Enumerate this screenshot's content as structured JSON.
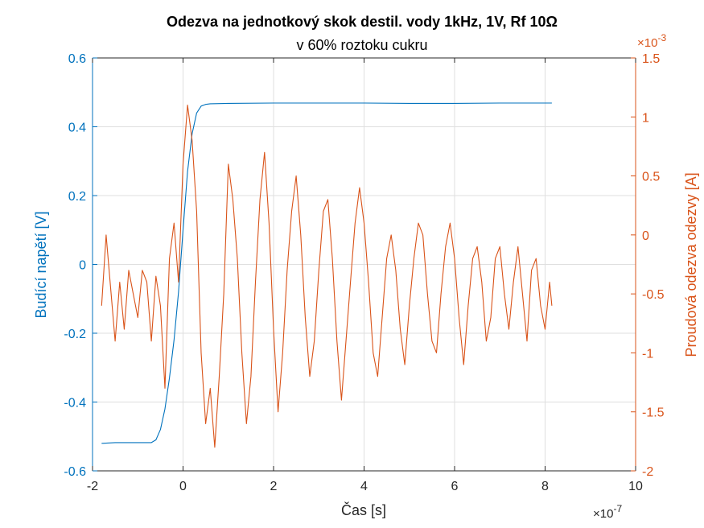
{
  "chart_data": {
    "type": "line",
    "title": "Odezva na jednotkový skok destil. vody 1kHz, 1V, Rf 10Ω",
    "subtitle": "v 60% roztoku cukru",
    "xlabel": "Čas [s]",
    "ylabel_left": "Budící napětí [V]",
    "ylabel_right": "Proudová odezva odezvy [A]",
    "x_exponent_label": "×10",
    "x_exponent_power": "-7",
    "y2_exponent_label": "×10",
    "y2_exponent_power": "-3",
    "xlim": [
      -2e-07,
      1e-06
    ],
    "ylim_left": [
      -0.6,
      0.6
    ],
    "ylim_right": [
      -0.002,
      0.0015
    ],
    "xticks": [
      -2,
      0,
      2,
      4,
      6,
      8,
      10
    ],
    "xtick_labels": [
      "-2",
      "0",
      "2",
      "4",
      "6",
      "8",
      "10"
    ],
    "yticks_left": [
      -0.6,
      -0.4,
      -0.2,
      0,
      0.2,
      0.4,
      0.6
    ],
    "ytick_labels_left": [
      "-0.6",
      "-0.4",
      "-0.2",
      "0",
      "0.2",
      "0.4",
      "0.6"
    ],
    "yticks_right": [
      -2,
      -1.5,
      -1,
      -0.5,
      0,
      0.5,
      1,
      1.5
    ],
    "ytick_labels_right": [
      "-2",
      "-1.5",
      "-1",
      "-0.5",
      "0",
      "0.5",
      "1",
      "1.5"
    ],
    "grid": true,
    "colors": {
      "left": "#0072BD",
      "right": "#D95319",
      "axis": "#262626",
      "grid": "#dfdfdf"
    },
    "series": [
      {
        "axis": "left",
        "color": "#0072BD",
        "x_units": "1e-7 s",
        "x": [
          -1.8,
          -1.5,
          -1.0,
          -0.7,
          -0.6,
          -0.5,
          -0.4,
          -0.3,
          -0.2,
          -0.1,
          0.0,
          0.1,
          0.2,
          0.3,
          0.4,
          0.5,
          0.6,
          1.0,
          2.0,
          3.0,
          4.0,
          5.0,
          6.0,
          7.0,
          8.15
        ],
        "y": [
          -0.52,
          -0.518,
          -0.518,
          -0.518,
          -0.51,
          -0.48,
          -0.42,
          -0.33,
          -0.22,
          -0.08,
          0.1,
          0.27,
          0.38,
          0.44,
          0.46,
          0.465,
          0.467,
          0.468,
          0.469,
          0.469,
          0.469,
          0.468,
          0.468,
          0.469,
          0.469
        ]
      },
      {
        "axis": "right",
        "color": "#D95319",
        "x_units": "1e-7 s",
        "y_units": "1e-3 A",
        "x": [
          -1.8,
          -1.7,
          -1.6,
          -1.5,
          -1.4,
          -1.3,
          -1.2,
          -1.1,
          -1.0,
          -0.9,
          -0.8,
          -0.7,
          -0.6,
          -0.5,
          -0.4,
          -0.3,
          -0.2,
          -0.1,
          0.0,
          0.1,
          0.2,
          0.3,
          0.4,
          0.5,
          0.6,
          0.7,
          0.8,
          0.9,
          1.0,
          1.1,
          1.2,
          1.3,
          1.4,
          1.5,
          1.6,
          1.7,
          1.8,
          1.9,
          2.0,
          2.1,
          2.2,
          2.3,
          2.4,
          2.5,
          2.6,
          2.7,
          2.8,
          2.9,
          3.0,
          3.1,
          3.2,
          3.3,
          3.4,
          3.5,
          3.6,
          3.7,
          3.8,
          3.9,
          4.0,
          4.1,
          4.2,
          4.3,
          4.4,
          4.5,
          4.6,
          4.7,
          4.8,
          4.9,
          5.0,
          5.1,
          5.2,
          5.3,
          5.4,
          5.5,
          5.6,
          5.7,
          5.8,
          5.9,
          6.0,
          6.1,
          6.2,
          6.3,
          6.4,
          6.5,
          6.6,
          6.7,
          6.8,
          6.9,
          7.0,
          7.1,
          7.2,
          7.3,
          7.4,
          7.5,
          7.6,
          7.7,
          7.8,
          7.9,
          8.0,
          8.1,
          8.15
        ],
        "y": [
          -0.6,
          0.0,
          -0.45,
          -0.9,
          -0.4,
          -0.8,
          -0.3,
          -0.5,
          -0.7,
          -0.3,
          -0.4,
          -0.9,
          -0.35,
          -0.6,
          -1.3,
          -0.2,
          0.1,
          -0.4,
          0.6,
          1.1,
          0.8,
          0.2,
          -1.0,
          -1.6,
          -1.3,
          -1.8,
          -1.2,
          -0.5,
          0.6,
          0.3,
          -0.2,
          -1.0,
          -1.6,
          -1.2,
          -0.4,
          0.3,
          0.7,
          0.1,
          -0.8,
          -1.5,
          -1.0,
          -0.3,
          0.2,
          0.5,
          0.0,
          -0.7,
          -1.2,
          -0.9,
          -0.3,
          0.2,
          0.3,
          -0.2,
          -0.9,
          -1.4,
          -0.9,
          -0.4,
          0.1,
          0.4,
          0.1,
          -0.4,
          -1.0,
          -1.2,
          -0.7,
          -0.2,
          0.0,
          -0.3,
          -0.8,
          -1.1,
          -0.6,
          -0.2,
          0.1,
          0.0,
          -0.5,
          -0.9,
          -1.0,
          -0.5,
          -0.1,
          0.1,
          -0.2,
          -0.7,
          -1.1,
          -0.6,
          -0.2,
          -0.1,
          -0.4,
          -0.9,
          -0.7,
          -0.2,
          -0.1,
          -0.5,
          -0.8,
          -0.4,
          -0.1,
          -0.5,
          -0.9,
          -0.3,
          -0.2,
          -0.6,
          -0.8,
          -0.4,
          -0.6
        ]
      }
    ]
  }
}
